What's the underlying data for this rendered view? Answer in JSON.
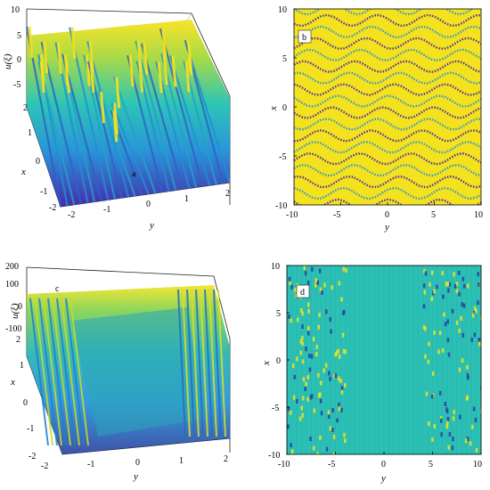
{
  "chart_data": [
    {
      "type": "surface",
      "panel_label": "a",
      "zlabel": "u(ξ)",
      "xlabel": "x",
      "ylabel": "y",
      "zticks": [
        "10",
        "5",
        "0",
        "-5"
      ],
      "xticks": [
        "2",
        "1",
        "0",
        "-1",
        "-2"
      ],
      "yticks": [
        "-2",
        "-1",
        "0",
        "1",
        "2"
      ],
      "zlim": [
        -5,
        10
      ],
      "xlim": [
        -2,
        2
      ],
      "ylim": [
        -2,
        2
      ],
      "colormap": [
        "#3e1fa8",
        "#1f8fd6",
        "#22c2b2",
        "#a6d83c",
        "#f9e21d"
      ]
    },
    {
      "type": "heatmap",
      "panel_label": "b",
      "xlabel": "x",
      "ylabel": "y",
      "xticks": [
        "10",
        "5",
        "0",
        "-5",
        "-10"
      ],
      "yticks": [
        "-10",
        "-5",
        "0",
        "5",
        "10"
      ],
      "xlim": [
        -10,
        10
      ],
      "ylim": [
        -10,
        10
      ],
      "colormap": [
        "#3e1fa8",
        "#1f8fd6",
        "#22c2b2",
        "#a6d83c",
        "#f9e21d"
      ]
    },
    {
      "type": "surface",
      "panel_label": "c",
      "zlabel": "u(ξ)",
      "xlabel": "x",
      "ylabel": "y",
      "zticks": [
        "200",
        "100",
        "0",
        "-100"
      ],
      "xticks": [
        "2",
        "1",
        "0",
        "-1",
        "-2"
      ],
      "yticks": [
        "-2",
        "-1",
        "0",
        "1",
        "2"
      ],
      "zlim": [
        -100,
        200
      ],
      "xlim": [
        -2,
        2
      ],
      "ylim": [
        -2,
        2
      ],
      "colormap": [
        "#2a3f9e",
        "#1f8fd6",
        "#1fb3b0",
        "#7fd14a",
        "#f2e31c"
      ]
    },
    {
      "type": "heatmap",
      "panel_label": "d",
      "xlabel": "x",
      "ylabel": "y",
      "xticks": [
        "10",
        "5",
        "0",
        "-5",
        "-10"
      ],
      "yticks": [
        "-10",
        "-5",
        "0",
        "5",
        "10"
      ],
      "xlim": [
        -10,
        10
      ],
      "ylim": [
        -10,
        10
      ],
      "colormap": [
        "#2a3f9e",
        "#1f8fd6",
        "#1fb3b0",
        "#7fd14a",
        "#f2e31c"
      ]
    }
  ]
}
